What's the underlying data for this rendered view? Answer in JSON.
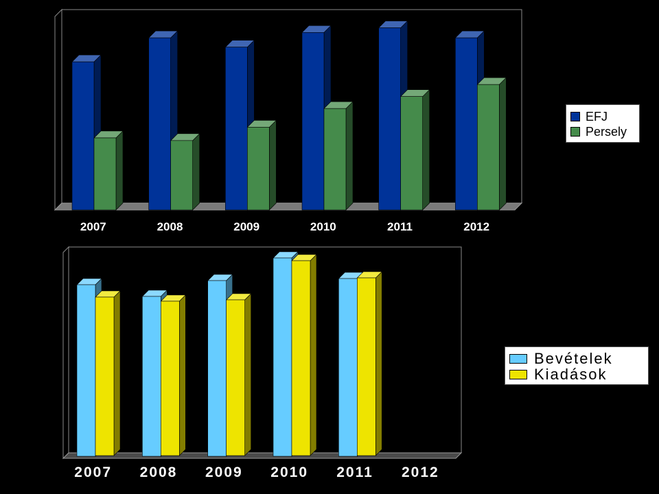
{
  "chart_data": [
    {
      "type": "bar",
      "categories": [
        "2007",
        "2008",
        "2009",
        "2010",
        "2011",
        "2012"
      ],
      "series": [
        {
          "name": "EFJ",
          "values": [
            222,
            258,
            244,
            266,
            273,
            258
          ],
          "color": "#003399"
        },
        {
          "name": "Persely",
          "values": [
            108,
            104,
            124,
            152,
            170,
            188
          ],
          "color": "#458b4b"
        }
      ],
      "ylim": [
        0,
        290
      ],
      "grid": false,
      "legend": "right",
      "title": "",
      "xlabel": "",
      "ylabel": ""
    },
    {
      "type": "bar",
      "categories": [
        "2007",
        "2008",
        "2009",
        "2010",
        "2011",
        "2012"
      ],
      "series": [
        {
          "name": "Bevételek",
          "values": [
            250,
            233,
            256,
            289,
            259,
            null
          ],
          "color": "#66ccff"
        },
        {
          "name": "Kiadások",
          "values": [
            231,
            225,
            227,
            284,
            259,
            null
          ],
          "color": "#eee400"
        }
      ],
      "ylim": [
        0,
        300
      ],
      "grid": false,
      "legend": "right",
      "title": "",
      "xlabel": "",
      "ylabel": ""
    }
  ]
}
